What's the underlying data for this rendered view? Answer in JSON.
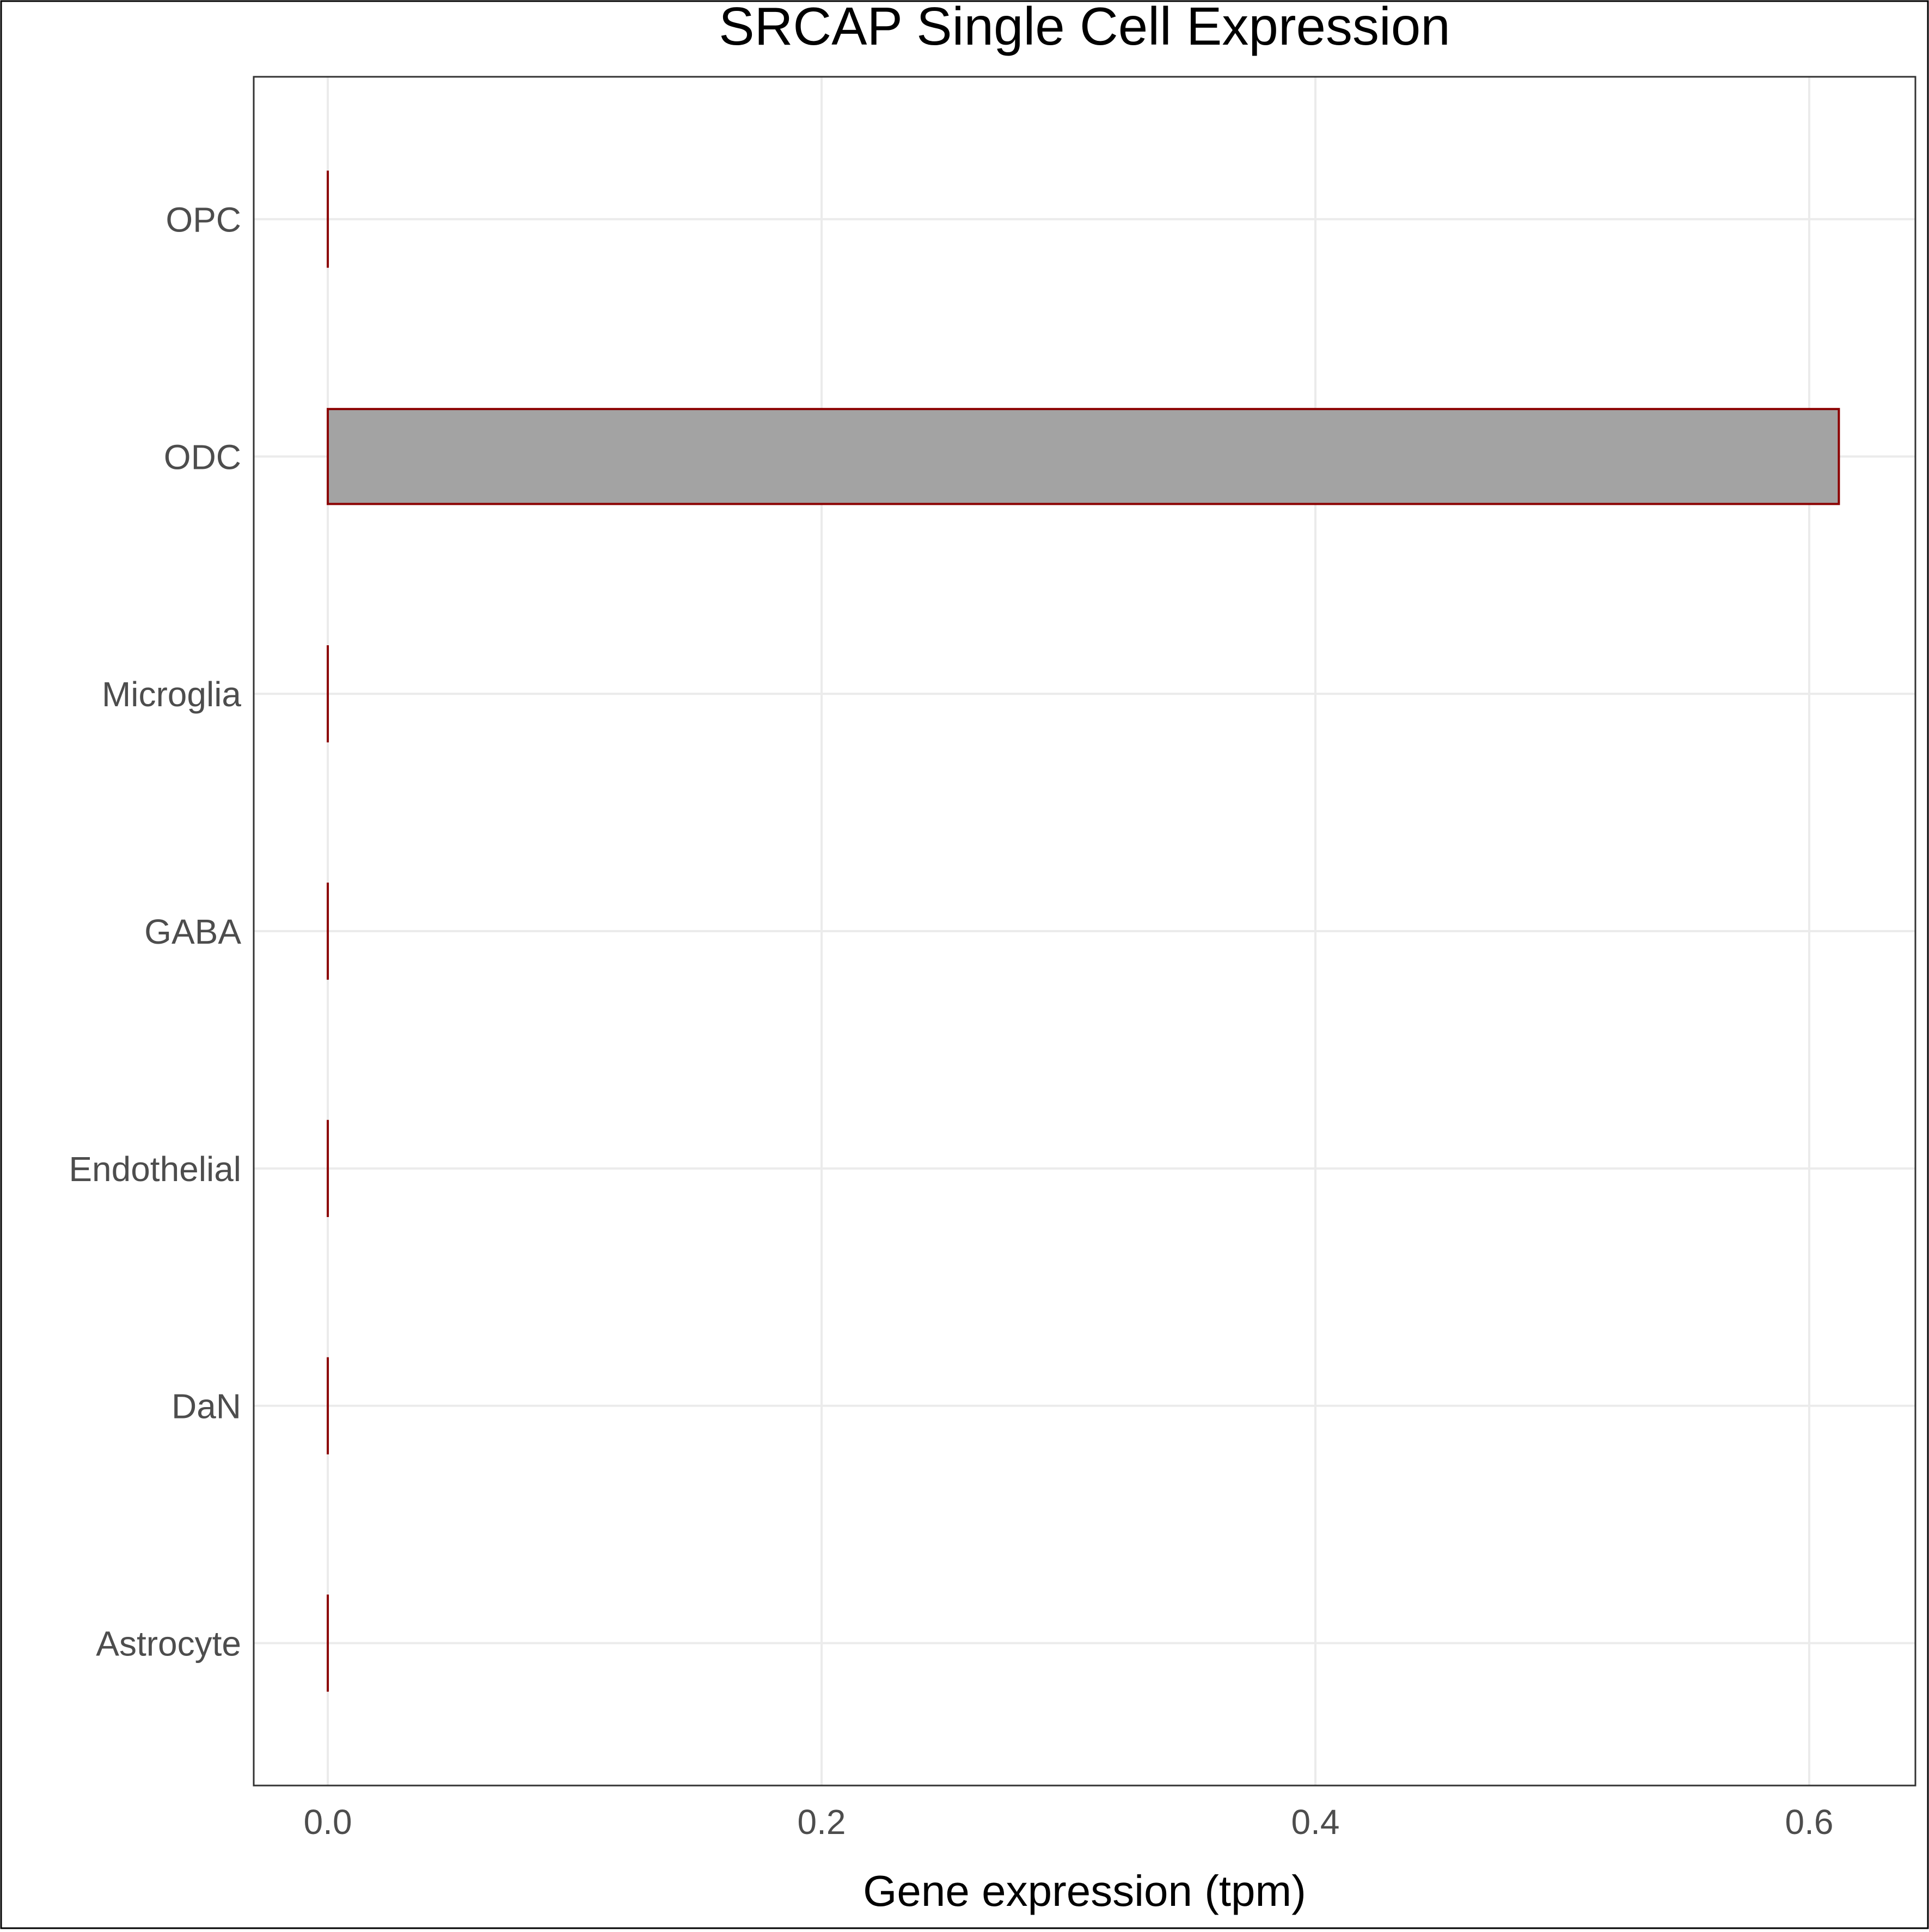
{
  "chart_data": {
    "type": "bar",
    "orientation": "horizontal",
    "title": "SRCAP Single Cell Expression",
    "xlabel": "Gene expression (tpm)",
    "ylabel": "",
    "categories": [
      "Astrocyte",
      "DaN",
      "Endothelial",
      "GABA",
      "Microglia",
      "ODC",
      "OPC"
    ],
    "values": [
      0.0,
      0.0,
      0.0,
      0.0,
      0.0,
      0.612,
      0.0
    ],
    "xlim": [
      -0.03,
      0.643
    ],
    "xticks": [
      0.0,
      0.2,
      0.4,
      0.6
    ],
    "xtick_labels": [
      "0.0",
      "0.2",
      "0.4",
      "0.6"
    ],
    "grid": true,
    "legend": "none",
    "colors": {
      "bar_fill": "#a3a3a3",
      "bar_stroke": "#8b0000",
      "grid": "#ebebeb",
      "axis_text": "#4d4d4d",
      "title": "#000000",
      "panel_border": "#333333"
    }
  }
}
